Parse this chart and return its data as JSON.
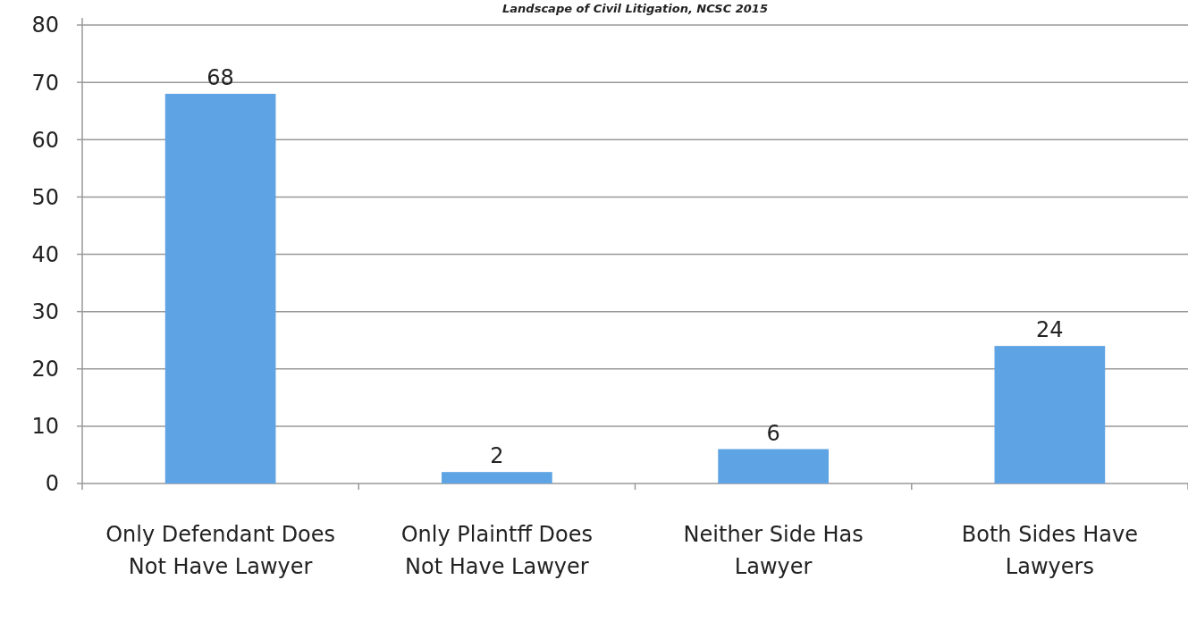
{
  "chart_data": {
    "type": "bar",
    "title": "Landscape of Civil Litigation, NCSC 2015",
    "categories": [
      "Only Defendant Does Not Have Lawyer",
      "Only Plaintff Does Not Have Lawyer",
      "Neither Side Has Lawyer",
      "Both Sides Have Lawyers"
    ],
    "values": [
      68,
      2,
      6,
      24
    ],
    "color": "#5ea3e3",
    "ylim": [
      0,
      80
    ],
    "yticks": [
      0,
      10,
      20,
      30,
      40,
      50,
      60,
      70,
      80
    ],
    "grid": "y",
    "data_labels": true
  }
}
